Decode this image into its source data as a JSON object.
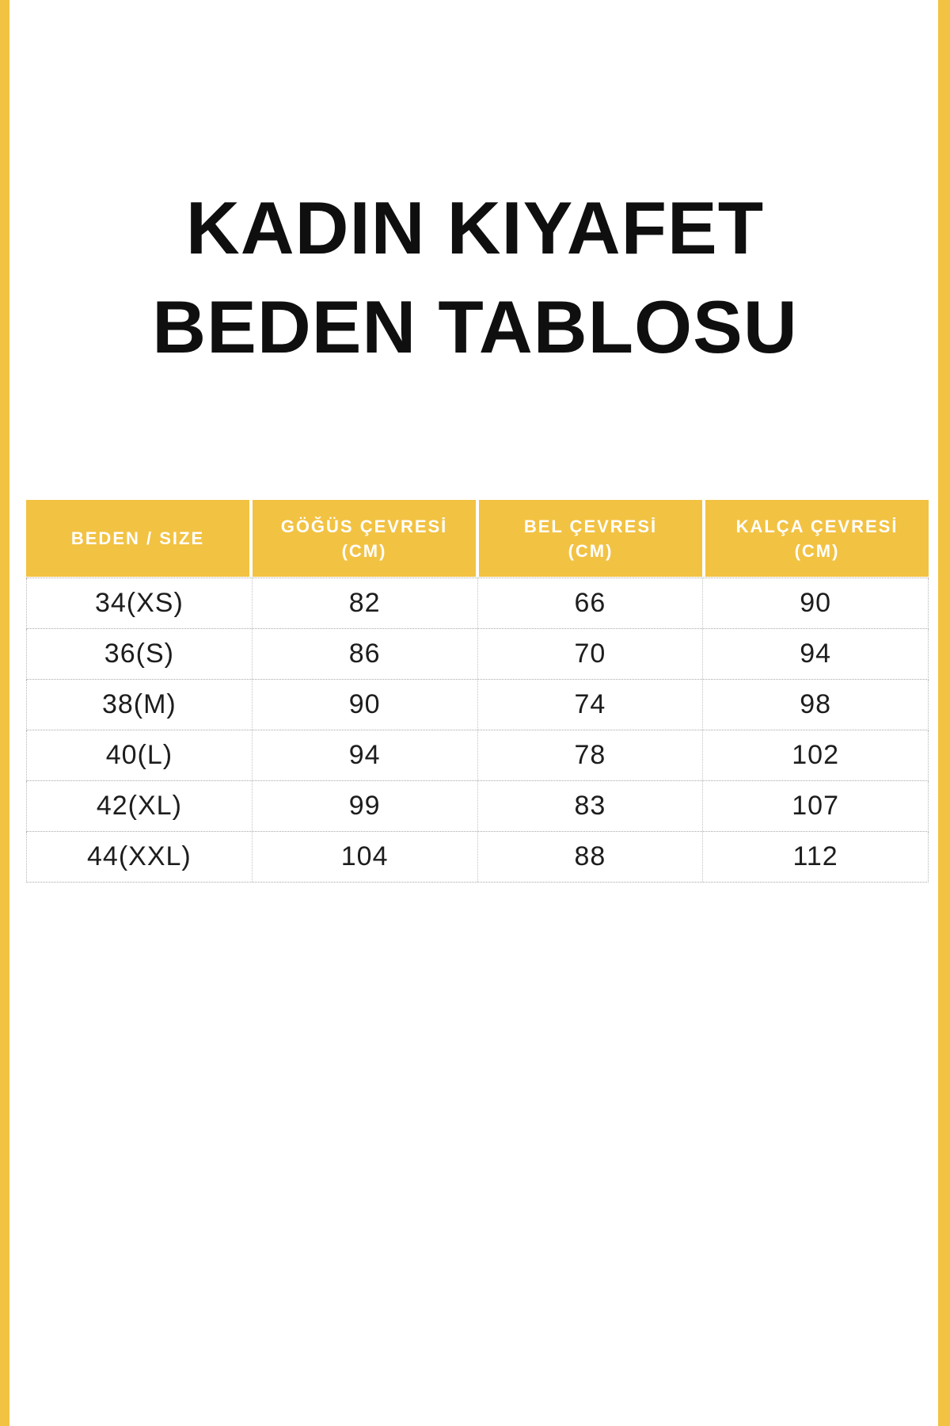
{
  "accent_color": "#F2C243",
  "title": {
    "line1": "KADIN KIYAFET",
    "line2": "BEDEN TABLOSU"
  },
  "table": {
    "headers": [
      {
        "line1": "BEDEN / SIZE",
        "line2": ""
      },
      {
        "line1": "GÖĞÜS ÇEVRESİ",
        "line2": "(CM)"
      },
      {
        "line1": "BEL ÇEVRESİ",
        "line2": "(CM)"
      },
      {
        "line1": "KALÇA ÇEVRESİ",
        "line2": "(CM)"
      }
    ]
  },
  "chart_data": {
    "type": "table",
    "title": "KADIN KIYAFET BEDEN TABLOSU",
    "columns": [
      "BEDEN / SIZE",
      "GÖĞÜS ÇEVRESİ (CM)",
      "BEL ÇEVRESİ (CM)",
      "KALÇA ÇEVRESİ (CM)"
    ],
    "rows": [
      [
        "34(XS)",
        82,
        66,
        90
      ],
      [
        "36(S)",
        86,
        70,
        94
      ],
      [
        "38(M)",
        90,
        74,
        98
      ],
      [
        "40(L)",
        94,
        78,
        102
      ],
      [
        "42(XL)",
        99,
        83,
        107
      ],
      [
        "44(XXL)",
        104,
        88,
        112
      ]
    ],
    "header_bg": "#F2C243",
    "header_text_color": "#FFFFFF",
    "body_text_color": "#1D1D1D"
  }
}
